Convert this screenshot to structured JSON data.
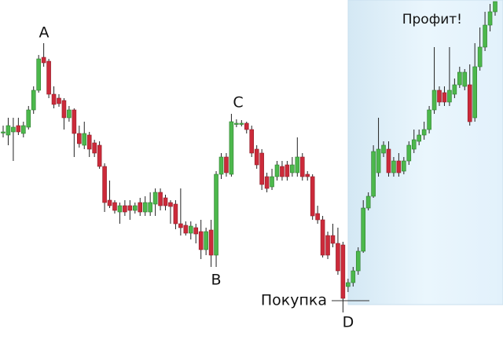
{
  "chart_data": {
    "type": "candlestick",
    "open": [
      270,
      266,
      270,
      278,
      268,
      276,
      298,
      323,
      365,
      360,
      318,
      313,
      310,
      288,
      298,
      268,
      253,
      266,
      256,
      253,
      226,
      183,
      180,
      168,
      176,
      176,
      170,
      180,
      168,
      168,
      178,
      193,
      186,
      180,
      178,
      153,
      151,
      141,
      148,
      143,
      120,
      145,
      113,
      216,
      238,
      216,
      281,
      281,
      281,
      273,
      248,
      243,
      213,
      200,
      213,
      226,
      228,
      218,
      218,
      238,
      216,
      213,
      166,
      158,
      138,
      138,
      128,
      126,
      73,
      78,
      93,
      118,
      173,
      188,
      218,
      243,
      248,
      218,
      233,
      220,
      233,
      248,
      258,
      266,
      273,
      298,
      323,
      320,
      308,
      318,
      330,
      328,
      330,
      288,
      353,
      378,
      406,
      423
    ],
    "high": [
      278,
      288,
      288,
      288,
      283,
      303,
      328,
      368,
      383,
      363,
      328,
      318,
      313,
      303,
      300,
      278,
      283,
      270,
      260,
      258,
      230,
      208,
      183,
      180,
      183,
      183,
      180,
      186,
      188,
      193,
      198,
      198,
      190,
      183,
      183,
      198,
      156,
      156,
      153,
      158,
      148,
      158,
      220,
      243,
      243,
      293,
      286,
      285,
      283,
      278,
      253,
      248,
      218,
      223,
      233,
      233,
      233,
      238,
      263,
      243,
      220,
      216,
      176,
      163,
      143,
      153,
      148,
      130,
      83,
      98,
      123,
      183,
      193,
      253,
      288,
      258,
      258,
      238,
      243,
      238,
      258,
      273,
      273,
      283,
      303,
      378,
      328,
      328,
      378,
      338,
      353,
      350,
      356,
      383,
      403,
      423,
      433,
      436
    ],
    "low": [
      263,
      253,
      233,
      266,
      263,
      273,
      293,
      320,
      353,
      313,
      300,
      302,
      273,
      283,
      238,
      250,
      248,
      238,
      238,
      223,
      168,
      173,
      166,
      153,
      163,
      158,
      166,
      163,
      163,
      163,
      163,
      170,
      170,
      153,
      146,
      138,
      138,
      133,
      128,
      108,
      113,
      98,
      98,
      210,
      213,
      213,
      276,
      277,
      268,
      238,
      223,
      196,
      193,
      196,
      208,
      208,
      208,
      213,
      213,
      208,
      208,
      158,
      153,
      110,
      108,
      123,
      88,
      40,
      66,
      73,
      88,
      116,
      170,
      186,
      213,
      238,
      213,
      213,
      213,
      216,
      228,
      243,
      253,
      260,
      268,
      293,
      303,
      303,
      303,
      313,
      326,
      323,
      278,
      283,
      348,
      373,
      398,
      418
    ],
    "close": [
      270,
      278,
      276,
      270,
      278,
      298,
      323,
      363,
      358,
      318,
      305,
      306,
      288,
      298,
      268,
      255,
      268,
      248,
      243,
      226,
      180,
      176,
      170,
      176,
      168,
      170,
      176,
      168,
      180,
      180,
      193,
      176,
      176,
      175,
      153,
      148,
      141,
      150,
      140,
      120,
      143,
      113,
      216,
      238,
      218,
      283,
      281,
      281,
      273,
      243,
      228,
      203,
      198,
      213,
      228,
      213,
      213,
      228,
      238,
      213,
      213,
      163,
      158,
      113,
      113,
      128,
      93,
      58,
      78,
      93,
      118,
      173,
      188,
      245,
      248,
      253,
      218,
      233,
      218,
      233,
      253,
      260,
      266,
      273,
      298,
      323,
      308,
      308,
      323,
      330,
      346,
      346,
      283,
      353,
      378,
      406,
      423,
      436
    ],
    "ylim": [
      0,
      438
    ],
    "up_color": "#4cb84c",
    "down_color": "#cc2a3a",
    "highlight_color": "#dff0fb",
    "annotations": [
      "A",
      "B",
      "C",
      "D",
      "Покупка",
      "Профит!"
    ]
  }
}
